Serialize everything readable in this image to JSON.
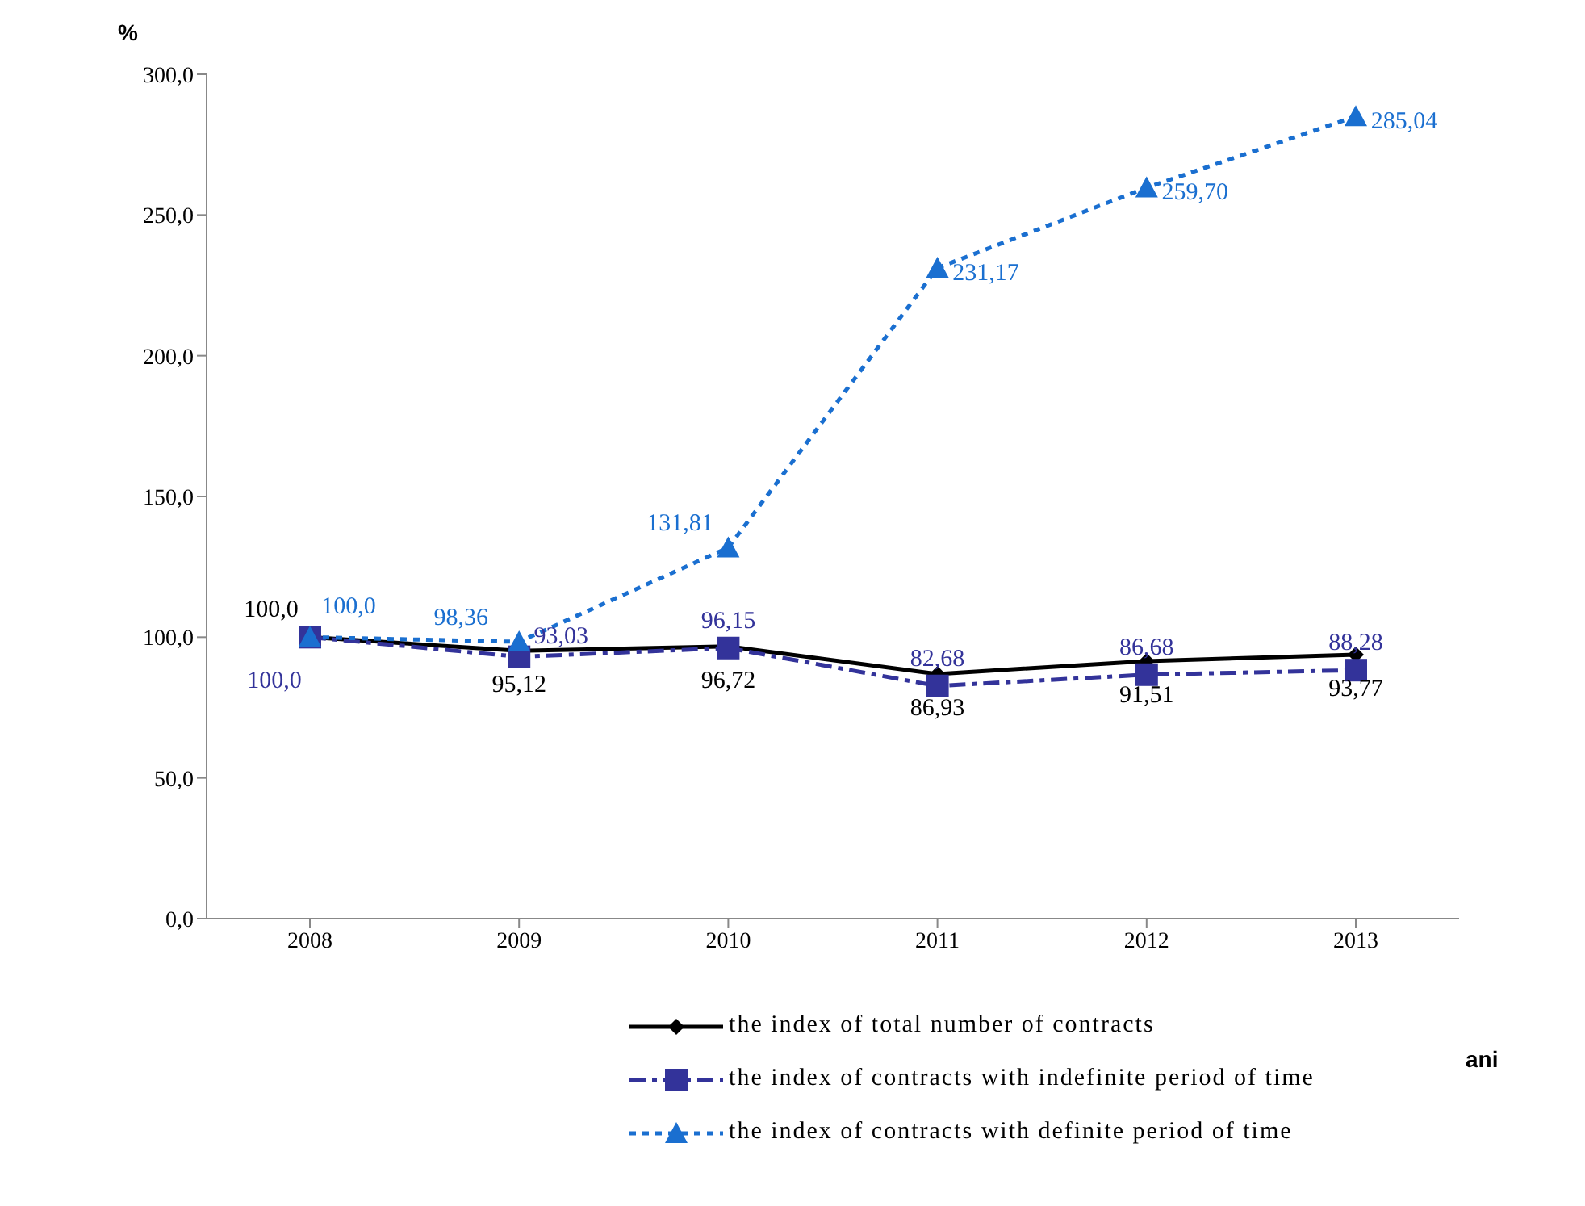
{
  "chart_data": {
    "type": "line",
    "categories": [
      "2008",
      "2009",
      "2010",
      "2011",
      "2012",
      "2013"
    ],
    "ylabel": "%",
    "xlabel": "ani",
    "ylim": [
      0,
      300
    ],
    "yticks": [
      {
        "value": 0,
        "label": "0,0"
      },
      {
        "value": 50,
        "label": "50,0"
      },
      {
        "value": 100,
        "label": "100,0"
      },
      {
        "value": 150,
        "label": "150,0"
      },
      {
        "value": 200,
        "label": "200,0"
      },
      {
        "value": 250,
        "label": "250,0"
      },
      {
        "value": 300,
        "label": "300,0"
      }
    ],
    "grid": false,
    "legend": "bottom",
    "series": [
      {
        "name": "the index of total number of contracts",
        "color": "#000000",
        "marker": "diamond",
        "line_style": "solid",
        "values": [
          100.0,
          95.12,
          96.72,
          86.93,
          91.51,
          93.77
        ],
        "value_labels": [
          "100,0",
          "95,12",
          "96,72",
          "86,93",
          "91,51",
          "93,77"
        ]
      },
      {
        "name": "the index of contracts with indefinite period of time",
        "color": "#33339a",
        "marker": "square",
        "line_style": "dashed",
        "values": [
          100.0,
          93.03,
          96.15,
          82.68,
          86.68,
          88.28
        ],
        "value_labels": [
          "100,0",
          "93,03",
          "96,15",
          "82,68",
          "86,68",
          "88,28"
        ]
      },
      {
        "name": "the index of contracts with definite period of time",
        "color": "#1a6fd0",
        "marker": "triangle",
        "line_style": "dotted",
        "values": [
          100.0,
          98.36,
          131.81,
          231.17,
          259.7,
          285.04
        ],
        "value_labels": [
          "100,0",
          "98,36",
          "131,81",
          "231,17",
          "259,70",
          "285,04"
        ]
      }
    ]
  }
}
